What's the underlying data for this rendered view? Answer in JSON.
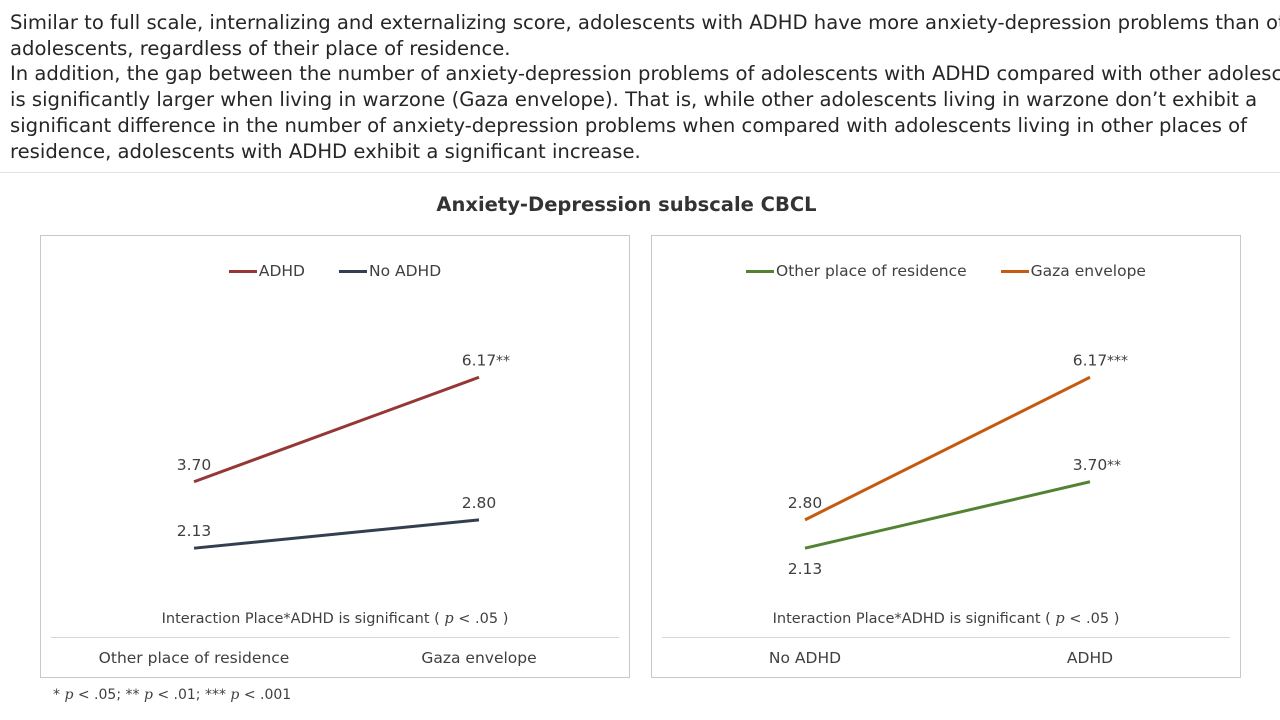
{
  "intro": {
    "lines": [
      "Similar to full scale, internalizing and externalizing score, adolescents with ADHD have more anxiety-depression problems than other",
      "adolescents, regardless of their place of residence.",
      "In addition, the gap between the number of anxiety-depression problems of adolescents with ADHD compared with other adolescents",
      "is significantly larger when living in warzone (Gaza envelope). That is, while other adolescents living in warzone don’t exhibit a",
      "significant difference in the number of anxiety-depression problems when compared with adolescents living in other places of",
      "residence, adolescents with ADHD exhibit a significant increase."
    ]
  },
  "figure_title": "Anxiety-Depression  subscale CBCL",
  "footnote": {
    "p1": "p",
    "t1": " < .05; ** ",
    "p2": "p",
    "t2": " < .01; *** ",
    "p3": "p",
    "t3": " < .001",
    "lead": "* "
  },
  "colors": {
    "adhd": "#953735",
    "no_adhd": "#333f50",
    "other_place": "#548235",
    "gaza": "#c55a11"
  },
  "chart_data": [
    {
      "type": "line",
      "categories": [
        "Other place of residence",
        "Gaza envelope"
      ],
      "series": [
        {
          "name": "ADHD",
          "values": [
            3.7,
            6.17
          ],
          "labels": [
            "3.70",
            "6.17"
          ],
          "sig": [
            "",
            "**"
          ],
          "color_key": "adhd"
        },
        {
          "name": "No ADHD",
          "values": [
            2.13,
            2.8
          ],
          "labels": [
            "2.13",
            "2.80"
          ],
          "sig": [
            "",
            ""
          ],
          "color_key": "no_adhd"
        }
      ],
      "note_prefix": "Interaction Place*ADHD is significant  ( ",
      "note_p": "p",
      "note_suffix": " < .05 )",
      "ylim": [
        1,
        7.5
      ]
    },
    {
      "type": "line",
      "categories": [
        "No ADHD",
        "ADHD"
      ],
      "series": [
        {
          "name": "Other place of residence",
          "values": [
            2.13,
            3.7
          ],
          "labels": [
            "2.13",
            "3.70"
          ],
          "sig": [
            "",
            "**"
          ],
          "color_key": "other_place"
        },
        {
          "name": "Gaza envelope",
          "values": [
            2.8,
            6.17
          ],
          "labels": [
            "2.80",
            "6.17"
          ],
          "sig": [
            "",
            "***"
          ],
          "color_key": "gaza"
        }
      ],
      "note_prefix": "Interaction Place*ADHD is significant  ( ",
      "note_p": "p",
      "note_suffix": " < .05 )",
      "ylim": [
        1,
        7.5
      ]
    }
  ]
}
